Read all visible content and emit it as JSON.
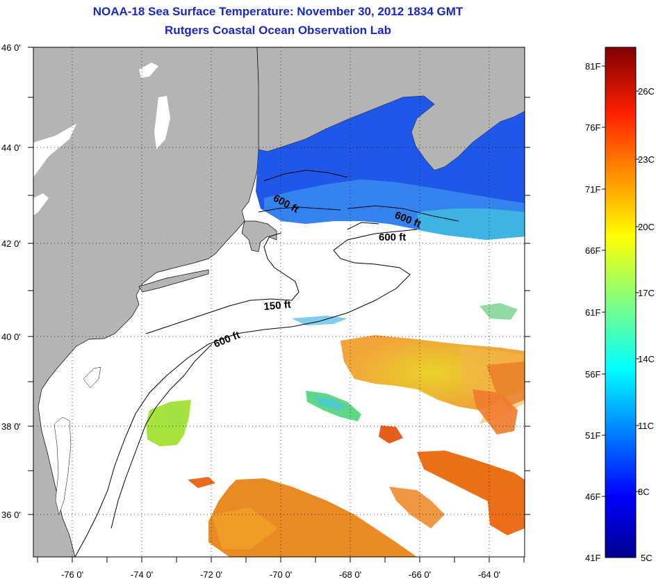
{
  "header": {
    "title": "NOAA-18 Sea Surface Temperature:  November 30, 2012 1834 GMT",
    "subtitle": "Rutgers Coastal Ocean Observation Lab"
  },
  "map": {
    "lon_range": [
      -77,
      -63
    ],
    "lat_range": [
      35,
      46
    ],
    "lat_labels": [
      "46 0'",
      "44 0'",
      "42 0'",
      "40 0'",
      "38 0'",
      "36 0'"
    ],
    "lon_labels": [
      "-76 0'",
      "-74 0'",
      "-72 0'",
      "-70 0'",
      "-68 0'",
      "-66 0'",
      "-64 0'"
    ],
    "land_color": "#b4b4b4",
    "grid": "dotted",
    "isobath_labels": [
      "600 ft",
      "600 ft",
      "600 ft",
      "150 ft",
      "600 ft"
    ]
  },
  "colorbar": {
    "fahrenheit_labels": [
      "81F",
      "76F",
      "71F",
      "66F",
      "61F",
      "56F",
      "51F",
      "46F",
      "41F"
    ],
    "celsius_labels": [
      "26C",
      "23C",
      "20C",
      "17C",
      "14C",
      "11C",
      "8C",
      "5C"
    ],
    "colors": [
      "#800000",
      "#ff0000",
      "#ff8000",
      "#ffff00",
      "#80ff80",
      "#00ffff",
      "#0080ff",
      "#0000ff",
      "#00008f"
    ]
  }
}
